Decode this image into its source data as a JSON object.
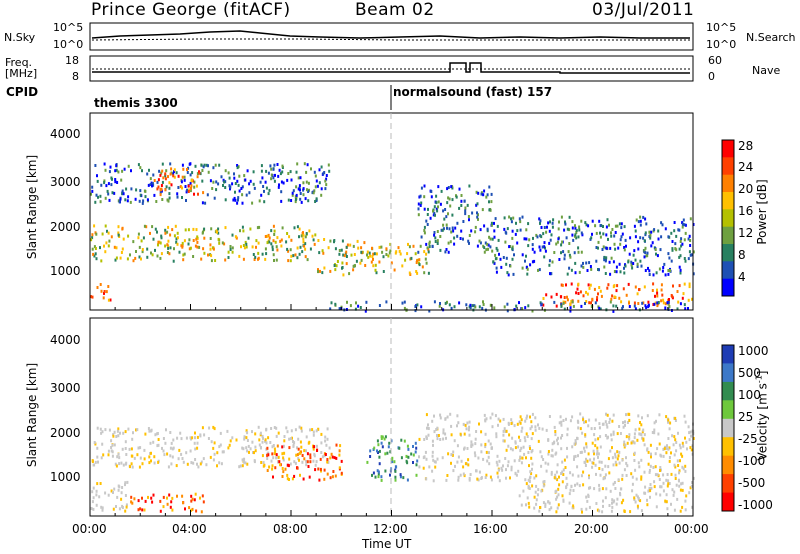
{
  "header": {
    "title": "Prince George (fitACF)",
    "beam": "Beam 02",
    "date": "03/Jul/2011"
  },
  "noise_panel": {
    "left_label": "N.Sky",
    "right_label": "N.Search",
    "left_ticks": [
      "10^5",
      "10^0"
    ],
    "right_ticks": [
      "10^5",
      "10^0"
    ]
  },
  "freq_panel": {
    "left_label_line1": "Freq.",
    "left_label_line2": "[MHz]",
    "right_label": "Nave",
    "left_ticks": [
      "18",
      "8"
    ],
    "right_ticks": [
      "60",
      "0"
    ]
  },
  "cpid_panel": {
    "label": "CPID",
    "programs": [
      {
        "name": "themis 3300",
        "start_hour": 0
      },
      {
        "name": "normalsound (fast) 157",
        "start_hour": 12
      }
    ]
  },
  "chart_data": [
    {
      "type": "heatmap",
      "name": "power",
      "ylabel": "Slant Range [km]",
      "xlabel": "Time UT",
      "x_range_hours": [
        0,
        24
      ],
      "ylim": [
        180,
        4600
      ],
      "yticks": [
        "4000",
        "3000",
        "2000",
        "1000"
      ],
      "colorbar": {
        "label": "Power [dB]",
        "ticks": [
          "28",
          "24",
          "20",
          "16",
          "12",
          "8",
          "4"
        ],
        "colors": [
          "#ff0000",
          "#ff4000",
          "#ff8000",
          "#ffc000",
          "#b4c000",
          "#6ea040",
          "#288060",
          "#1e50b4",
          "#0000ff"
        ]
      },
      "regions": [
        {
          "t0": 0.0,
          "t1": 9.5,
          "r0": 2600,
          "r1": 3500,
          "level": "low"
        },
        {
          "t0": 2.5,
          "t1": 4.5,
          "r0": 2800,
          "r1": 3400,
          "level": "high"
        },
        {
          "t0": 0.0,
          "t1": 9.0,
          "r0": 1300,
          "r1": 2100,
          "level": "mid"
        },
        {
          "t0": 0.0,
          "t1": 0.8,
          "r0": 400,
          "r1": 800,
          "level": "high"
        },
        {
          "t0": 9.0,
          "t1": 11.0,
          "r0": 1000,
          "r1": 1800,
          "level": "mid"
        },
        {
          "t0": 11.0,
          "t1": 13.5,
          "r0": 1000,
          "r1": 1700,
          "level": "mid"
        },
        {
          "t0": 13.0,
          "t1": 16.0,
          "r0": 1500,
          "r1": 3000,
          "level": "low"
        },
        {
          "t0": 16.0,
          "t1": 24.0,
          "r0": 1000,
          "r1": 2300,
          "level": "low"
        },
        {
          "t0": 18.0,
          "t1": 24.0,
          "r0": 300,
          "r1": 800,
          "level": "high"
        },
        {
          "t0": 9.0,
          "t1": 24.0,
          "r0": 180,
          "r1": 400,
          "level": "low"
        }
      ]
    },
    {
      "type": "heatmap",
      "name": "velocity",
      "ylabel": "Slant Range [km]",
      "xlabel": "Time UT",
      "x_range_hours": [
        0,
        24
      ],
      "ylim": [
        180,
        4600
      ],
      "yticks": [
        "4000",
        "3000",
        "2000",
        "1000"
      ],
      "colorbar": {
        "label": "Velocity [m s^-1]",
        "ticks": [
          "1000",
          "500",
          "100",
          "25",
          "-25",
          "-100",
          "-500",
          "-1000"
        ],
        "colors": [
          "#1e3cb4",
          "#3c78c8",
          "#328c50",
          "#6ec83c",
          "#c8c8c8",
          "#ffc000",
          "#ff8c00",
          "#ff4000",
          "#ff0000"
        ]
      },
      "regions": [
        {
          "t0": 0.0,
          "t1": 9.5,
          "r0": 1300,
          "r1": 2200,
          "level": "gray"
        },
        {
          "t0": 0.0,
          "t1": 1.5,
          "r0": 300,
          "r1": 1000,
          "level": "gray"
        },
        {
          "t0": 1.5,
          "t1": 4.5,
          "r0": 300,
          "r1": 700,
          "level": "neg"
        },
        {
          "t0": 7.0,
          "t1": 10.0,
          "r0": 1000,
          "r1": 1800,
          "level": "neg"
        },
        {
          "t0": 11.0,
          "t1": 13.0,
          "r0": 1000,
          "r1": 2000,
          "level": "pos"
        },
        {
          "t0": 13.0,
          "t1": 24.0,
          "r0": 1000,
          "r1": 2500,
          "level": "gray"
        },
        {
          "t0": 17.0,
          "t1": 24.0,
          "r0": 300,
          "r1": 1000,
          "level": "gray"
        }
      ]
    }
  ],
  "x_axis": {
    "label": "Time UT",
    "ticks": [
      "00:00",
      "04:00",
      "08:00",
      "12:00",
      "16:00",
      "20:00",
      "00:00"
    ]
  }
}
